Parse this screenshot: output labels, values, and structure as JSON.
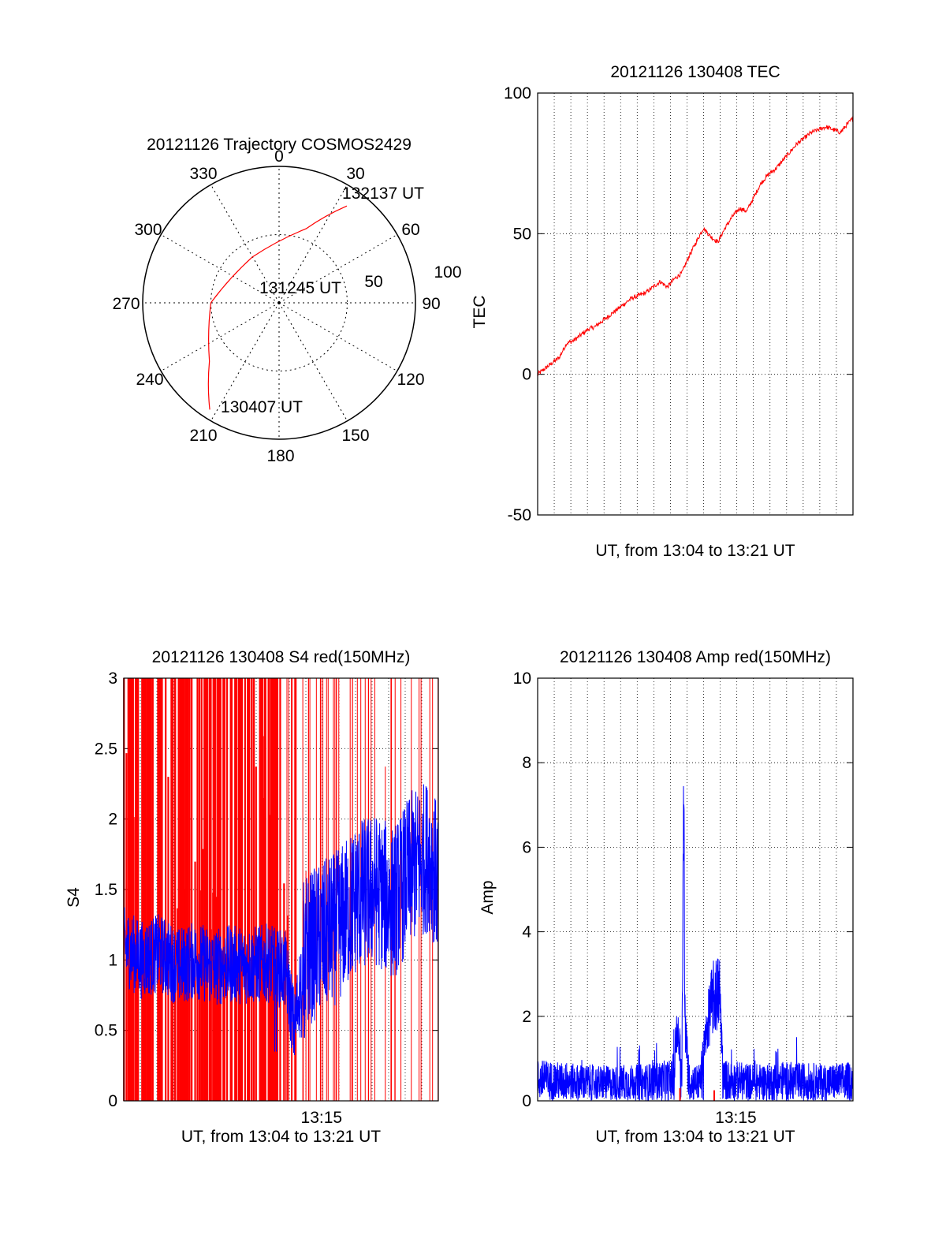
{
  "chart_data": [
    {
      "type": "polar",
      "title": "20121126 Trajectory COSMOS2429",
      "azimuth_labels": [
        "0",
        "30",
        "60",
        "90",
        "120",
        "150",
        "180",
        "210",
        "240",
        "270",
        "300",
        "330"
      ],
      "radial_labels": [
        "50",
        "100"
      ],
      "trajectory": {
        "color": "#ff0000",
        "points": [
          {
            "azimuth": 213,
            "elevation": 6,
            "label": "130407 UT"
          },
          {
            "azimuth": 230,
            "elevation": 30
          },
          {
            "azimuth": 270,
            "elevation": 45
          },
          {
            "azimuth": 330,
            "elevation": 55
          },
          {
            "azimuth": 20,
            "elevation": 38
          },
          {
            "azimuth": 35,
            "elevation": 12,
            "label": "132137 UT"
          }
        ],
        "mid_label": "131245 UT"
      }
    },
    {
      "type": "line",
      "title": "20121126 130408 TEC",
      "ylabel": "TEC",
      "xlabel": "UT, from 13:04 to 13:21 UT",
      "ylim": [
        -50,
        100
      ],
      "yticks": [
        "-50",
        "0",
        "50",
        "100"
      ],
      "xlim": [
        0,
        17.5
      ],
      "color": "#ff0000",
      "series": [
        {
          "x": [
            0,
            0.4,
            0.8,
            1.2,
            1.6,
            2.0,
            2.4,
            2.8,
            3.2,
            3.6,
            4.0,
            4.4,
            4.8,
            5.2,
            5.6,
            6.0,
            6.4,
            6.8,
            7.2,
            7.6,
            8.0,
            8.4,
            8.8,
            9.2,
            9.6,
            10.0,
            10.4,
            10.8,
            11.2,
            11.6,
            12.0,
            12.4,
            12.8,
            13.2,
            13.6,
            14.0,
            14.4,
            14.8,
            15.2,
            15.6,
            16.0,
            16.4,
            16.8,
            17.2,
            17.5
          ],
          "values": [
            0,
            2,
            4,
            6,
            11,
            12,
            14,
            16,
            17,
            19,
            21,
            23,
            25,
            27,
            28,
            29,
            31,
            33,
            31,
            34,
            36,
            42,
            47,
            52,
            49,
            47,
            52,
            56,
            59,
            58,
            63,
            68,
            71,
            73,
            76,
            79,
            82,
            84,
            86,
            87,
            88,
            87,
            86,
            89,
            91
          ]
        }
      ]
    },
    {
      "type": "line",
      "title": "20121126 130408 S4 red(150MHz)",
      "ylabel": "S4",
      "xlabel": "UT, from 13:04 to 13:21 UT",
      "xtick_label": "13:15",
      "ylim": [
        0,
        3
      ],
      "yticks": [
        "0",
        "0.5",
        "1",
        "1.5",
        "2",
        "2.5",
        "3"
      ],
      "xlim": [
        0,
        17.5
      ],
      "series": [
        {
          "color": "#ff0000",
          "values_note": "red vertical lines 0-3"
        },
        {
          "color": "#0000ff",
          "x": [
            0,
            1,
            2,
            3,
            4,
            5,
            6,
            7,
            8,
            9,
            9.5,
            10,
            10.5,
            11,
            12,
            13,
            14,
            15,
            16,
            17,
            17.5
          ],
          "values": [
            1.1,
            1.0,
            1.05,
            0.95,
            1.0,
            0.95,
            0.97,
            0.96,
            0.98,
            0.92,
            0.5,
            1.05,
            1.1,
            1.15,
            1.25,
            1.45,
            1.5,
            1.4,
            1.65,
            1.75,
            1.55
          ]
        }
      ]
    },
    {
      "type": "line",
      "title": "20121126 130408 Amp red(150MHz)",
      "ylabel": "Amp",
      "xlabel": "UT, from 13:04 to 13:21 UT",
      "xtick_label": "13:15",
      "ylim": [
        0,
        10
      ],
      "yticks": [
        "0",
        "2",
        "4",
        "6",
        "8",
        "10"
      ],
      "xlim": [
        0,
        17.5
      ],
      "series": [
        {
          "color": "#0000ff",
          "x": [
            0,
            2,
            4,
            6,
            7.5,
            7.8,
            8.0,
            8.1,
            8.2,
            8.4,
            9,
            9.6,
            9.8,
            10.1,
            10.3,
            12,
            14,
            16,
            17.5
          ],
          "values": [
            0.9,
            0.8,
            0.75,
            0.8,
            0.9,
            2.4,
            0.8,
            8.5,
            2.0,
            0.8,
            0.8,
            2.8,
            3.1,
            3.2,
            0.9,
            0.8,
            0.85,
            0.8,
            0.85
          ]
        },
        {
          "color": "#ff0000",
          "x": [
            7.9,
            9.8
          ],
          "values": [
            0.3,
            0.25
          ]
        }
      ]
    }
  ]
}
